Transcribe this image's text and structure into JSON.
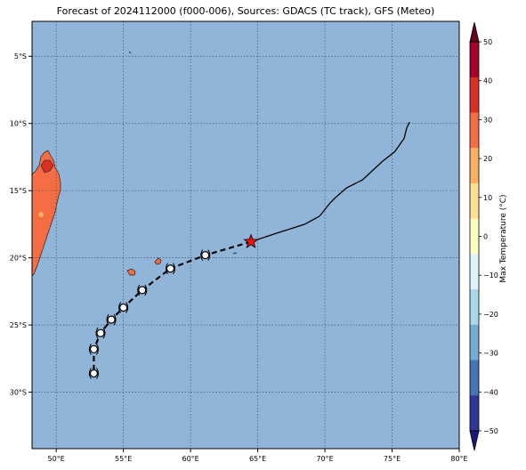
{
  "title": "Forecast of 2024112000 (f000-006), Sources: GDACS (TC track), GFS (Meteo)",
  "map": {
    "lon_range": [
      48.2,
      80
    ],
    "lat_range": [
      -34.2,
      -2.4
    ],
    "x_ticks": [
      "50°E",
      "55°E",
      "60°E",
      "65°E",
      "70°E",
      "75°E",
      "80°E"
    ],
    "y_ticks": [
      "5°S",
      "10°S",
      "15°S",
      "20°S",
      "25°S",
      "30°S"
    ],
    "ocean_color": "#91b5d9",
    "land_color": "#f46d43",
    "grid": "dotted"
  },
  "colorbar": {
    "label": "Max Temperature (°C)",
    "ticks": [
      "50",
      "40",
      "30",
      "20",
      "10",
      "0",
      "−10",
      "−20",
      "−30",
      "−40",
      "−50"
    ],
    "colors_top_to_bottom": [
      "#a50026",
      "#d73027",
      "#f46d43",
      "#fdae61",
      "#fee090",
      "#ffffbf",
      "#e0f3f8",
      "#abd9e9",
      "#74add1",
      "#4575b4",
      "#313695"
    ],
    "extend_top_color": "#67001f",
    "extend_bottom_color": "#1a1a80"
  },
  "track": {
    "current_position_marker": "star",
    "forecast_marker_icon": "cyclone-symbol-icon",
    "past_track_points": [
      [
        76.3,
        -9.9
      ],
      [
        76.1,
        -10.3
      ],
      [
        75.9,
        -11.1
      ],
      [
        75.2,
        -12.1
      ],
      [
        74.3,
        -12.8
      ],
      [
        72.8,
        -14.2
      ],
      [
        71.6,
        -14.8
      ],
      [
        70.8,
        -15.5
      ],
      [
        70.4,
        -15.9
      ],
      [
        69.6,
        -16.9
      ],
      [
        68.5,
        -17.5
      ],
      [
        66.3,
        -18.2
      ],
      [
        64.5,
        -18.8
      ]
    ],
    "forecast_points": [
      [
        64.5,
        -18.8
      ],
      [
        61.1,
        -19.8
      ],
      [
        58.5,
        -20.8
      ],
      [
        56.4,
        -22.4
      ],
      [
        55.0,
        -23.7
      ],
      [
        54.1,
        -24.6
      ],
      [
        53.3,
        -25.6
      ],
      [
        52.8,
        -26.8
      ],
      [
        52.8,
        -28.6
      ]
    ]
  }
}
